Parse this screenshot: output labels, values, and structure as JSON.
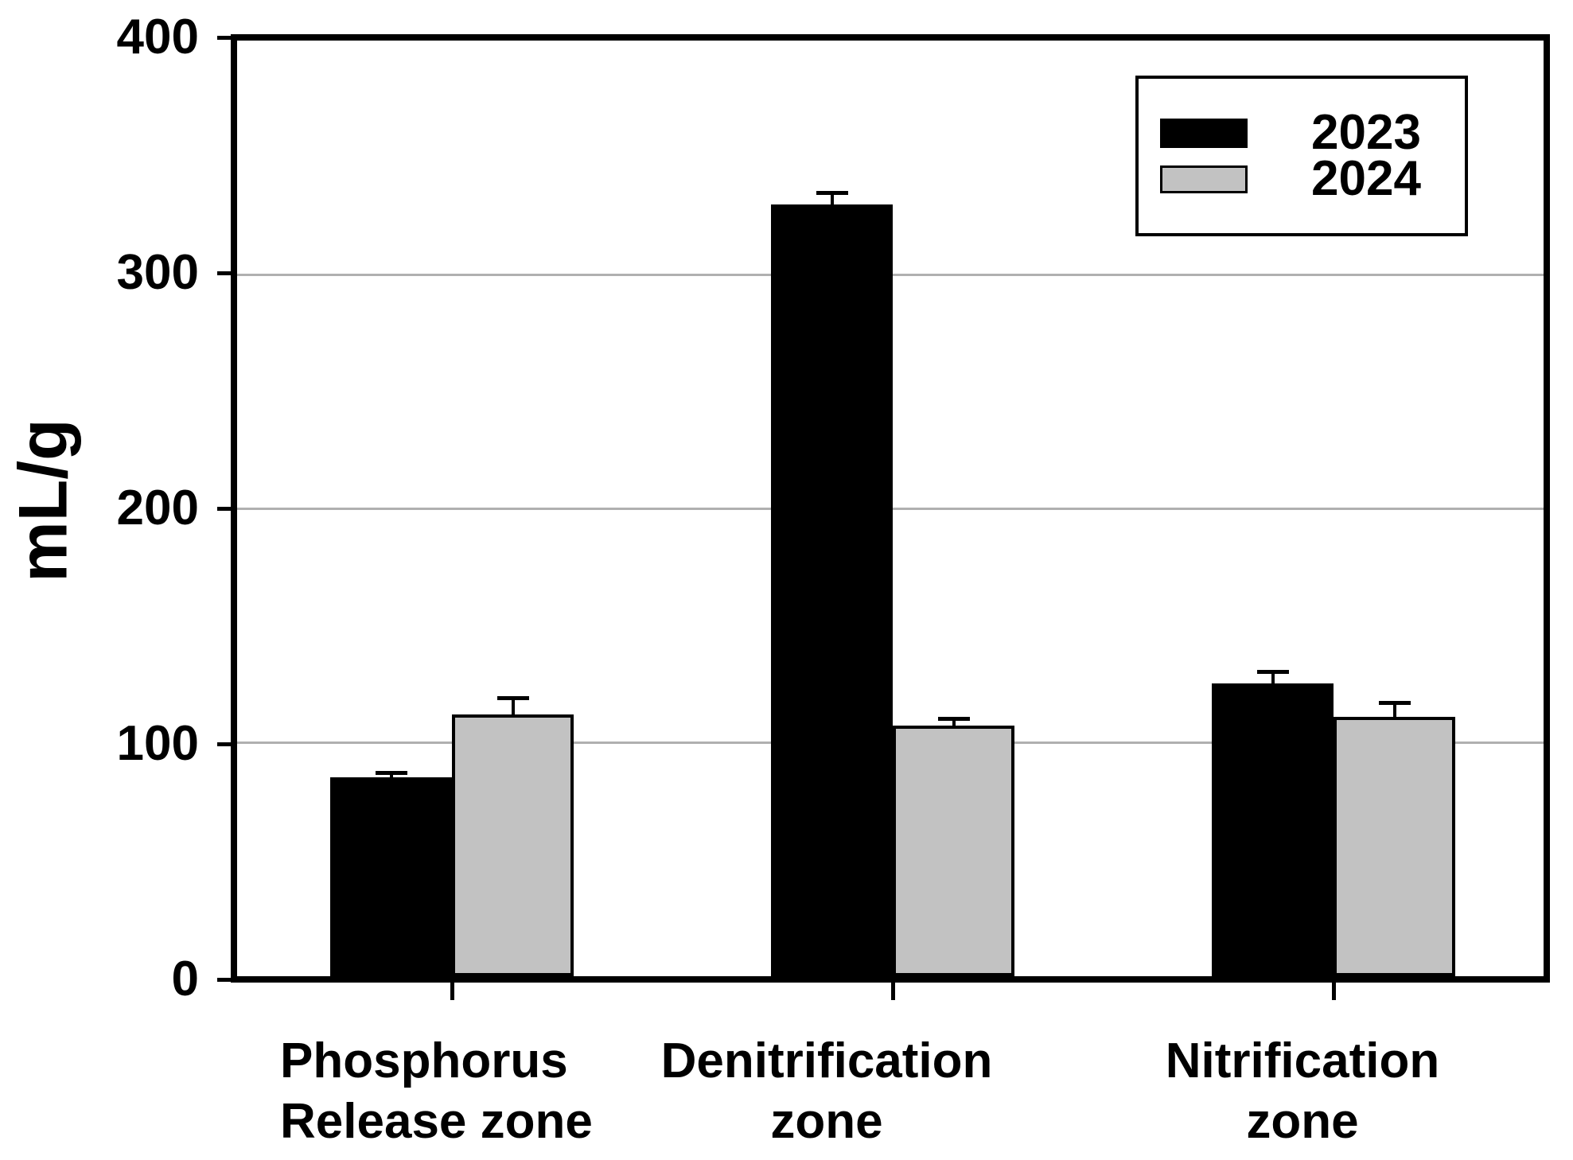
{
  "chart_data": {
    "type": "bar",
    "title": "",
    "xlabel": "",
    "ylabel": "mL/g",
    "ylim": [
      0,
      400
    ],
    "yticks": [
      0,
      100,
      200,
      300,
      400
    ],
    "grid": "horizontal",
    "legend_position": "top-right",
    "categories": [
      [
        "Phosphorus",
        "Release zone"
      ],
      [
        "Denitrification",
        "zone"
      ],
      [
        "Nitrification",
        "zone"
      ]
    ],
    "series": [
      {
        "name": "2023",
        "color": "#000000",
        "values": [
          85,
          330,
          125
        ],
        "errors": [
          2,
          5,
          5
        ]
      },
      {
        "name": "2024",
        "color": "#c2c2c2",
        "values": [
          112,
          107,
          111
        ],
        "errors": [
          7,
          3,
          6
        ]
      }
    ],
    "colors": {
      "axis": "#000000",
      "gridline": "#b0b0b0",
      "background": "#ffffff",
      "error_bar": "#000000"
    }
  }
}
